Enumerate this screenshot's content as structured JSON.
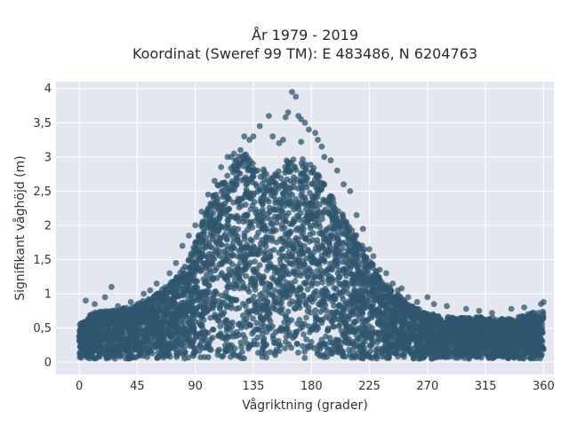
{
  "chart_data": {
    "type": "scatter",
    "title": "År 1979 - 2019",
    "subtitle": "Koordinat (Sweref 99 TM): E 483486, N 6204763",
    "xlabel": "Vågriktning (grader)",
    "ylabel": "Signifikant våghöjd (m)",
    "xlim": [
      -18,
      368
    ],
    "ylim": [
      -0.18,
      4.1
    ],
    "xticks": [
      0,
      45,
      90,
      135,
      180,
      225,
      270,
      315,
      360
    ],
    "xtick_labels": [
      "0",
      "45",
      "90",
      "135",
      "180",
      "225",
      "270",
      "315",
      "360"
    ],
    "yticks": [
      0,
      0.5,
      1,
      1.5,
      2,
      2.5,
      3,
      3.5,
      4
    ],
    "ytick_labels": [
      "0",
      "0,5",
      "1",
      "1,5",
      "2",
      "2,5",
      "3",
      "3,5",
      "4"
    ],
    "grid": true,
    "background": "#e5e7f0",
    "marker_color": "#2f566d",
    "series_min_y": 0.05,
    "envelope": {
      "x": [
        0,
        10,
        20,
        30,
        40,
        50,
        60,
        70,
        80,
        90,
        100,
        110,
        120,
        130,
        140,
        150,
        160,
        170,
        180,
        190,
        200,
        210,
        220,
        230,
        240,
        250,
        260,
        270,
        280,
        290,
        300,
        310,
        320,
        330,
        340,
        350,
        360
      ],
      "y": [
        0.55,
        0.72,
        0.75,
        0.78,
        0.82,
        0.9,
        1.0,
        1.15,
        1.35,
        1.75,
        2.3,
        2.7,
        2.95,
        3.1,
        2.85,
        2.75,
        2.95,
        3.0,
        2.9,
        2.6,
        2.3,
        2.0,
        1.7,
        1.35,
        1.1,
        0.95,
        0.8,
        0.72,
        0.68,
        0.65,
        0.65,
        0.66,
        0.65,
        0.63,
        0.66,
        0.72,
        0.75
      ]
    },
    "outlier_points": [
      [
        165,
        3.95
      ],
      [
        168,
        3.88
      ],
      [
        170,
        3.6
      ],
      [
        172,
        3.55
      ],
      [
        175,
        3.5
      ],
      [
        178,
        3.4
      ],
      [
        162,
        3.65
      ],
      [
        160,
        3.58
      ],
      [
        147,
        3.6
      ],
      [
        140,
        3.45
      ],
      [
        135,
        3.3
      ],
      [
        132,
        3.25
      ],
      [
        128,
        3.3
      ],
      [
        125,
        3.1
      ],
      [
        120,
        3.05
      ],
      [
        118,
        3.0
      ],
      [
        183,
        3.35
      ],
      [
        185,
        3.25
      ],
      [
        188,
        3.15
      ],
      [
        190,
        3.0
      ],
      [
        195,
        2.95
      ],
      [
        200,
        2.8
      ],
      [
        205,
        2.6
      ],
      [
        210,
        2.5
      ],
      [
        215,
        2.15
      ],
      [
        220,
        1.95
      ],
      [
        225,
        1.65
      ],
      [
        228,
        1.55
      ],
      [
        233,
        1.35
      ],
      [
        238,
        1.3
      ],
      [
        243,
        1.15
      ],
      [
        247,
        1.05
      ],
      [
        250,
        1.08
      ],
      [
        255,
        0.95
      ],
      [
        262,
        0.88
      ],
      [
        270,
        0.95
      ],
      [
        275,
        0.85
      ],
      [
        285,
        0.82
      ],
      [
        300,
        0.78
      ],
      [
        310,
        0.75
      ],
      [
        320,
        0.72
      ],
      [
        335,
        0.78
      ],
      [
        345,
        0.8
      ],
      [
        350,
        0.7
      ],
      [
        358,
        0.85
      ],
      [
        360,
        0.88
      ],
      [
        5,
        0.9
      ],
      [
        12,
        0.85
      ],
      [
        20,
        0.95
      ],
      [
        25,
        1.1
      ],
      [
        30,
        0.82
      ],
      [
        40,
        0.88
      ],
      [
        50,
        1.0
      ],
      [
        55,
        1.05
      ],
      [
        60,
        1.15
      ],
      [
        70,
        1.3
      ],
      [
        75,
        1.45
      ],
      [
        80,
        1.7
      ],
      [
        85,
        1.85
      ],
      [
        90,
        2.0
      ],
      [
        95,
        2.2
      ],
      [
        100,
        2.45
      ],
      [
        105,
        2.65
      ],
      [
        110,
        2.85
      ],
      [
        115,
        3.0
      ],
      [
        155,
        3.2
      ],
      [
        150,
        3.3
      ],
      [
        158,
        3.25
      ],
      [
        172,
        3.22
      ]
    ]
  }
}
